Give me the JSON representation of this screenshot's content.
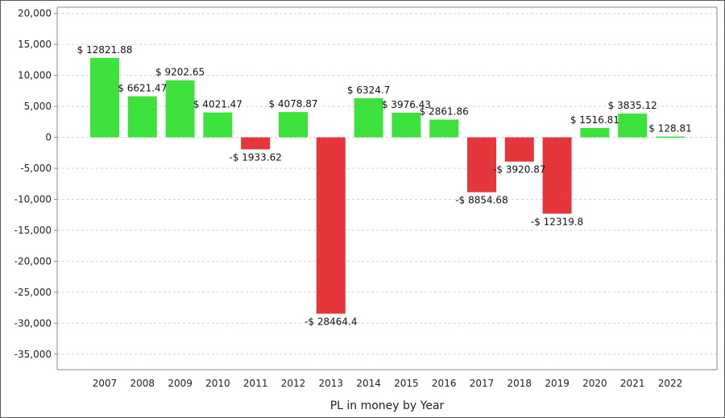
{
  "chart_data": {
    "type": "bar",
    "title": "",
    "xlabel": "PL in money by Year",
    "ylabel": "",
    "categories": [
      "2007",
      "2008",
      "2009",
      "2010",
      "2011",
      "2012",
      "2013",
      "2014",
      "2015",
      "2016",
      "2017",
      "2018",
      "2019",
      "2020",
      "2021",
      "2022"
    ],
    "values": [
      12821.88,
      6621.47,
      9202.65,
      4021.47,
      -1933.62,
      4078.87,
      -28464.4,
      6324.7,
      3976.43,
      2861.86,
      -8854.68,
      -3920.87,
      -12319.8,
      1516.81,
      3835.12,
      128.81
    ],
    "data_labels": [
      "$ 12821.88",
      "$ 6621.47",
      "$ 9202.65",
      "$ 4021.47",
      "-$ 1933.62",
      "$ 4078.87",
      "-$ 28464.4",
      "$ 6324.7",
      "$ 3976.43",
      "$ 2861.86",
      "-$ 8854.68",
      "-$ 3920.87",
      "-$ 12319.8",
      "$ 1516.81",
      "$ 3835.12",
      "$ 128.81"
    ],
    "ylim": [
      -37500,
      21000
    ],
    "yticks": [
      20000,
      15000,
      10000,
      5000,
      0,
      -5000,
      -10000,
      -15000,
      -20000,
      -25000,
      -30000,
      -35000
    ],
    "ytick_labels": [
      "20,000",
      "15,000",
      "10,000",
      "5,000",
      "0",
      "-5,000",
      "-10,000",
      "-15,000",
      "-20,000",
      "-25,000",
      "-30,000",
      "-35,000"
    ],
    "grid": true,
    "legend": "none",
    "colors": {
      "positive": "#3de23d",
      "negative": "#e5363b",
      "grid": "#d2d2d2",
      "axis": "#8a8a8a"
    }
  }
}
